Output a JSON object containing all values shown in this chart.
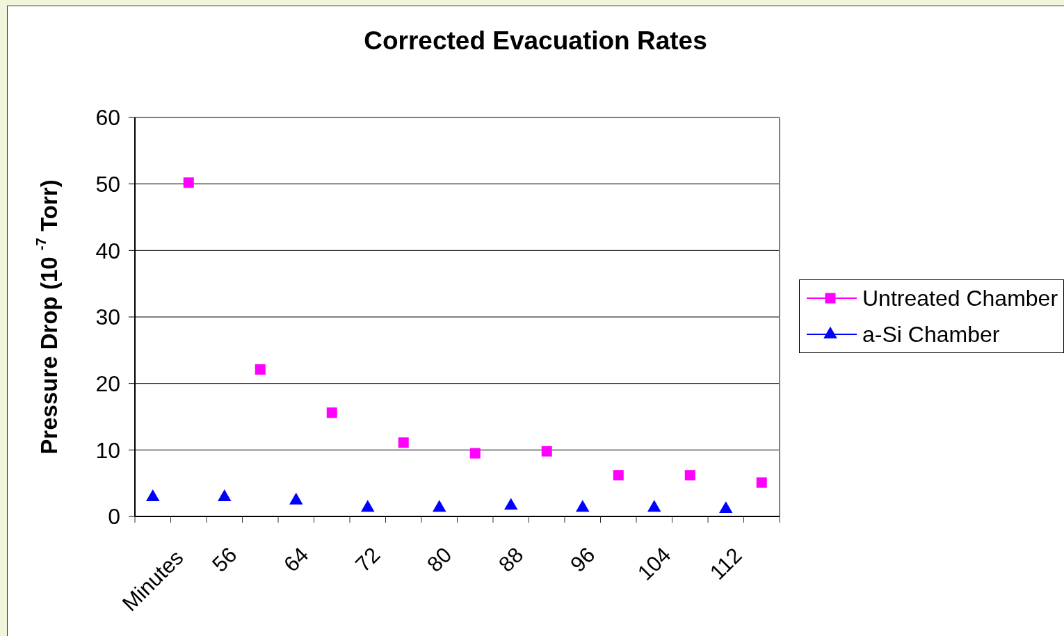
{
  "chart_data": {
    "type": "scatter",
    "title": "Corrected Evacuation Rates",
    "ylabel": "Pressure Drop (10 $^{-7}$ Torr)",
    "categories": [
      "Minutes",
      null,
      "56",
      null,
      "64",
      null,
      "72",
      null,
      "80",
      null,
      "88",
      null,
      "96",
      null,
      "104",
      null,
      "112",
      null
    ],
    "series": [
      {
        "name": "Untreated Chamber",
        "color": "#ff00ff",
        "marker": "square",
        "values": [
          null,
          50.2,
          null,
          22.1,
          null,
          15.6,
          null,
          11.1,
          null,
          9.5,
          null,
          9.8,
          null,
          6.2,
          null,
          6.2,
          null,
          5.1
        ]
      },
      {
        "name": "a-Si Chamber",
        "color": "#0000ff",
        "marker": "triangle",
        "values": [
          2.9,
          null,
          2.9,
          null,
          2.4,
          null,
          1.3,
          null,
          1.3,
          null,
          1.6,
          null,
          1.3,
          null,
          1.3,
          null,
          1.1,
          null
        ]
      }
    ],
    "ylim": [
      0,
      60
    ],
    "yticks": [
      0,
      10,
      20,
      30,
      40,
      50,
      60
    ],
    "grid": "y",
    "legend": "right"
  }
}
